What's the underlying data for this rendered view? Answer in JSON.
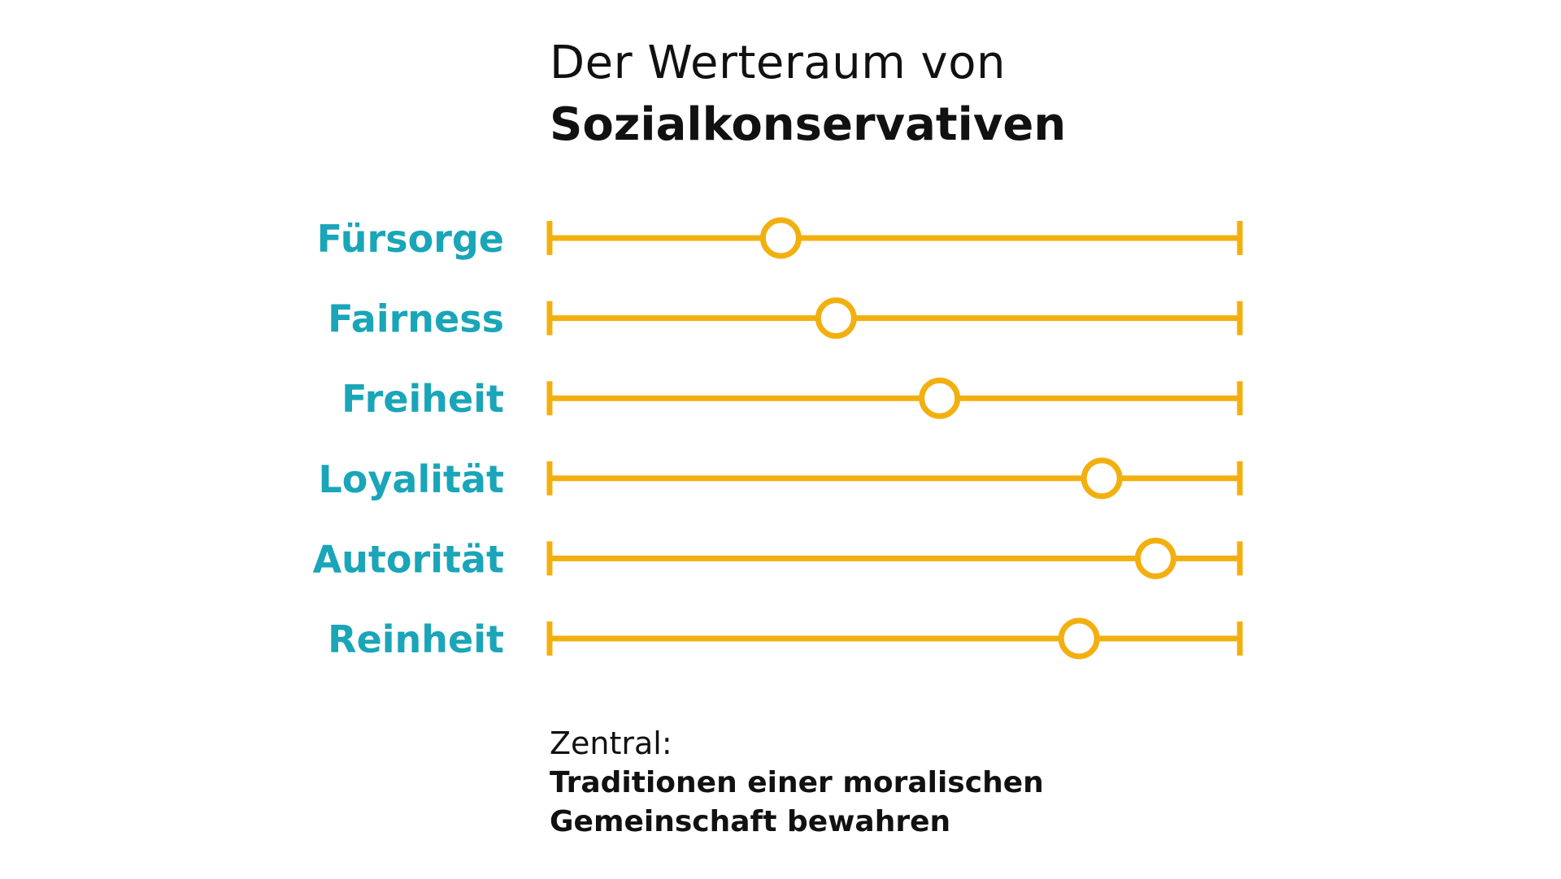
{
  "title": {
    "line1": "Der Werteraum von",
    "line2": "Sozialkonservativen"
  },
  "chart_data": {
    "type": "dot_scale",
    "title": "Der Werteraum von Sozialkonservativen",
    "categories": [
      "Fürsorge",
      "Fairness",
      "Freiheit",
      "Loyalität",
      "Autorität",
      "Reinheit"
    ],
    "values": [
      0.335,
      0.415,
      0.565,
      0.8,
      0.878,
      0.767
    ],
    "xlim": [
      0,
      1
    ],
    "colors": {
      "label": "#1aa5b8",
      "line": "#f2b010",
      "marker_fill": "#ffffff"
    }
  },
  "footer": {
    "label": "Zentral:",
    "text": "Traditionen einer moralischen Gemeinschaft bewahren"
  }
}
